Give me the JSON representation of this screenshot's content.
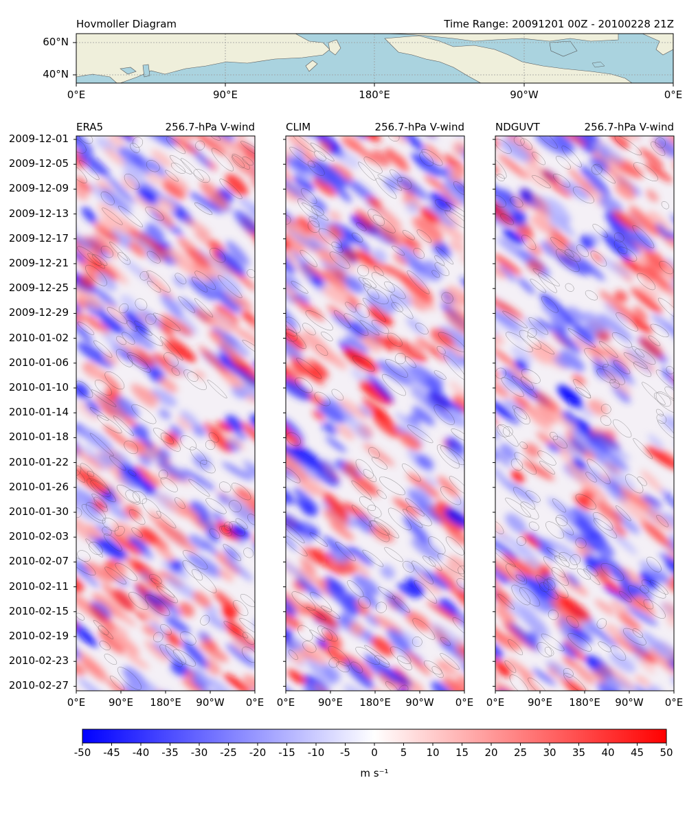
{
  "header": {
    "left_title": "Hovmoller Diagram",
    "right_title": "Time Range: 20091201 00Z - 20100228 21Z"
  },
  "map": {
    "lat_ticks": [
      "60°N",
      "40°N"
    ],
    "lon_ticks": [
      "0°E",
      "90°E",
      "180°E",
      "90°W",
      "0°E"
    ],
    "colors": {
      "ocean": "#aad3df",
      "land": "#efefdb",
      "coast": "#555555",
      "grid": "#9a9a9a"
    }
  },
  "panels": [
    {
      "name": "ERA5",
      "field": "256.7-hPa V-wind"
    },
    {
      "name": "CLIM",
      "field": "256.7-hPa V-wind"
    },
    {
      "name": "NDGUVT",
      "field": "256.7-hPa V-wind"
    }
  ],
  "time_ticks": [
    "2009-12-01",
    "2009-12-05",
    "2009-12-09",
    "2009-12-13",
    "2009-12-17",
    "2009-12-21",
    "2009-12-25",
    "2009-12-29",
    "2010-01-02",
    "2010-01-06",
    "2010-01-10",
    "2010-01-14",
    "2010-01-18",
    "2010-01-22",
    "2010-01-26",
    "2010-01-30",
    "2010-02-03",
    "2010-02-07",
    "2010-02-11",
    "2010-02-15",
    "2010-02-19",
    "2010-02-23",
    "2010-02-27"
  ],
  "panel_lon_ticks": [
    "0°E",
    "90°E",
    "180°E",
    "90°W",
    "0°E"
  ],
  "colorbar": {
    "ticks": [
      "-50",
      "-45",
      "-40",
      "-35",
      "-30",
      "-25",
      "-20",
      "-15",
      "-10",
      "-5",
      "0",
      "5",
      "10",
      "15",
      "20",
      "25",
      "30",
      "35",
      "40",
      "45",
      "50"
    ],
    "label": "m s⁻¹",
    "colors": {
      "min": "#0000ff",
      "mid": "#ffffff",
      "max": "#ff0000"
    }
  },
  "chart_data": {
    "type": "heatmap",
    "title": "Hovmoller Diagram",
    "subtitle": "Time Range: 20091201 00Z - 20100228 21Z",
    "x": [
      "0°E",
      "90°E",
      "180°E",
      "90°W",
      "0°E"
    ],
    "xlim": [
      0,
      360
    ],
    "y_range": [
      "2009-12-01",
      "2010-02-28"
    ],
    "color_scale": {
      "min": -50,
      "max": 50,
      "step": 5,
      "colormap": "bwr"
    },
    "series": [
      {
        "name": "ERA5",
        "variable": "256.7-hPa V-wind"
      },
      {
        "name": "CLIM",
        "variable": "256.7-hPa V-wind"
      },
      {
        "name": "NDGUVT",
        "variable": "256.7-hPa V-wind"
      }
    ],
    "colorbar_label": "m s⁻¹"
  }
}
